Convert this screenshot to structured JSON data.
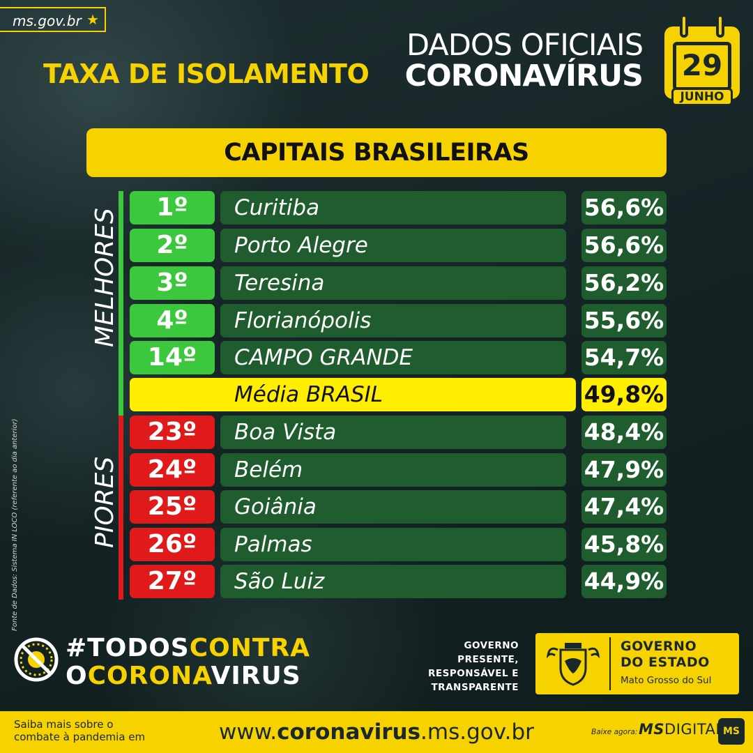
{
  "header": {
    "site": "ms.gov.br",
    "title": "TAXA DE ISOLAMENTO",
    "official_line1": "DADOS OFICIAIS",
    "official_line2": "CORONAVÍRUS",
    "date_day": "29",
    "date_month": "JUNHO"
  },
  "section_title": "CAPITAIS BRASILEIRAS",
  "side_labels": {
    "best": "MELHORES",
    "worst": "PIORES"
  },
  "best": [
    {
      "rank": "1º",
      "city": "Curitiba",
      "pct": "56,6%"
    },
    {
      "rank": "2º",
      "city": "Porto Alegre",
      "pct": "56,6%"
    },
    {
      "rank": "3º",
      "city": "Teresina",
      "pct": "56,2%"
    },
    {
      "rank": "4º",
      "city": "Florianópolis",
      "pct": "55,6%"
    },
    {
      "rank": "14º",
      "city": "CAMPO GRANDE",
      "pct": "54,7%"
    }
  ],
  "average": {
    "label": "Média BRASIL",
    "pct": "49,8%"
  },
  "worst": [
    {
      "rank": "23º",
      "city": "Boa Vista",
      "pct": "48,4%"
    },
    {
      "rank": "24º",
      "city": "Belém",
      "pct": "47,9%"
    },
    {
      "rank": "25º",
      "city": "Goiânia",
      "pct": "47,4%"
    },
    {
      "rank": "26º",
      "city": "Palmas",
      "pct": "45,8%"
    },
    {
      "rank": "27º",
      "city": "São Luiz",
      "pct": "44,9%"
    }
  ],
  "source_note": "Fonte de Dados: Sistema IN LOCO (referente ao dia anterior)",
  "campaign": {
    "line1_a": "#TODOS",
    "line1_b": "CONTRA",
    "line2_a": "O",
    "line2_b": "CORONA",
    "line2_c": "VIRUS"
  },
  "government": {
    "motto": [
      "GOVERNO",
      "PRESENTE,",
      "RESPONSÁVEL E",
      "TRANSPARENTE"
    ],
    "name_line1": "GOVERNO",
    "name_line2": "DO ESTADO",
    "state": "Mato Grosso do Sul"
  },
  "footer": {
    "note_line1": "Saiba mais sobre o",
    "note_line2": "combate à pandemia em",
    "url_prefix": "www.",
    "url_bold": "coronavirus",
    "url_suffix": ".ms.gov.br",
    "app_note": "Baixe agora:",
    "app_bold": "MS",
    "app_rest": "DIGITAL",
    "app_badge": "MS"
  },
  "colors": {
    "accent_yellow": "#f6d200",
    "best_green": "#3cc83c",
    "worst_red": "#e01a1a",
    "row_green": "#1f5c2e",
    "average_yellow": "#ffee00"
  }
}
